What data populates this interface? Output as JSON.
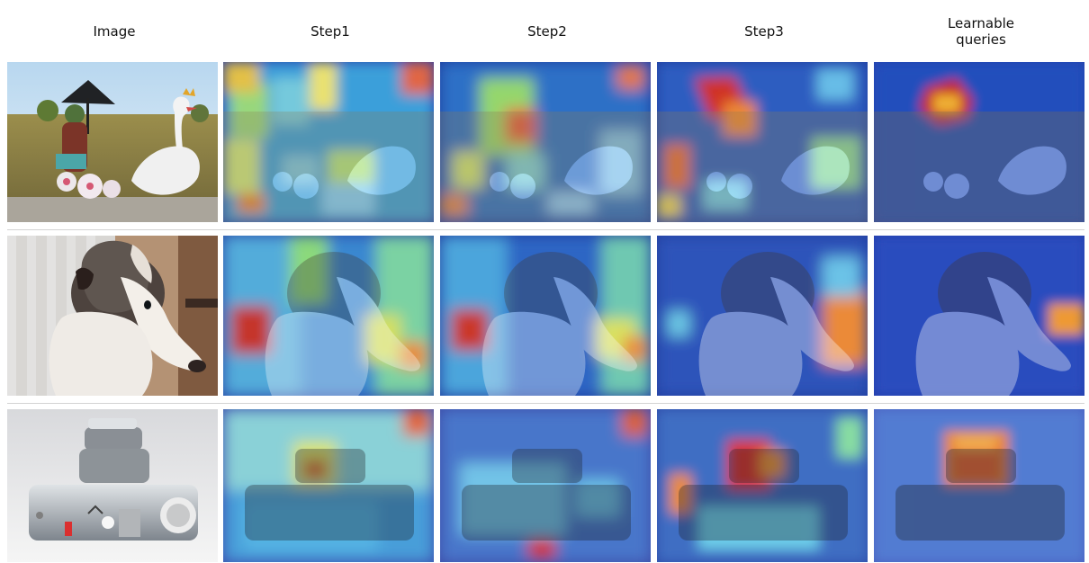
{
  "figure": {
    "columns": [
      {
        "id": "image",
        "label": "Image"
      },
      {
        "id": "step1",
        "label": "Step1"
      },
      {
        "id": "step2",
        "label": "Step2"
      },
      {
        "id": "step3",
        "label": "Step3"
      },
      {
        "id": "learnable_queries",
        "label": "Learnable\nqueries"
      }
    ],
    "rows": [
      {
        "id": "swan_scene"
      },
      {
        "id": "dog_scene"
      },
      {
        "id": "camera_scene"
      }
    ]
  }
}
